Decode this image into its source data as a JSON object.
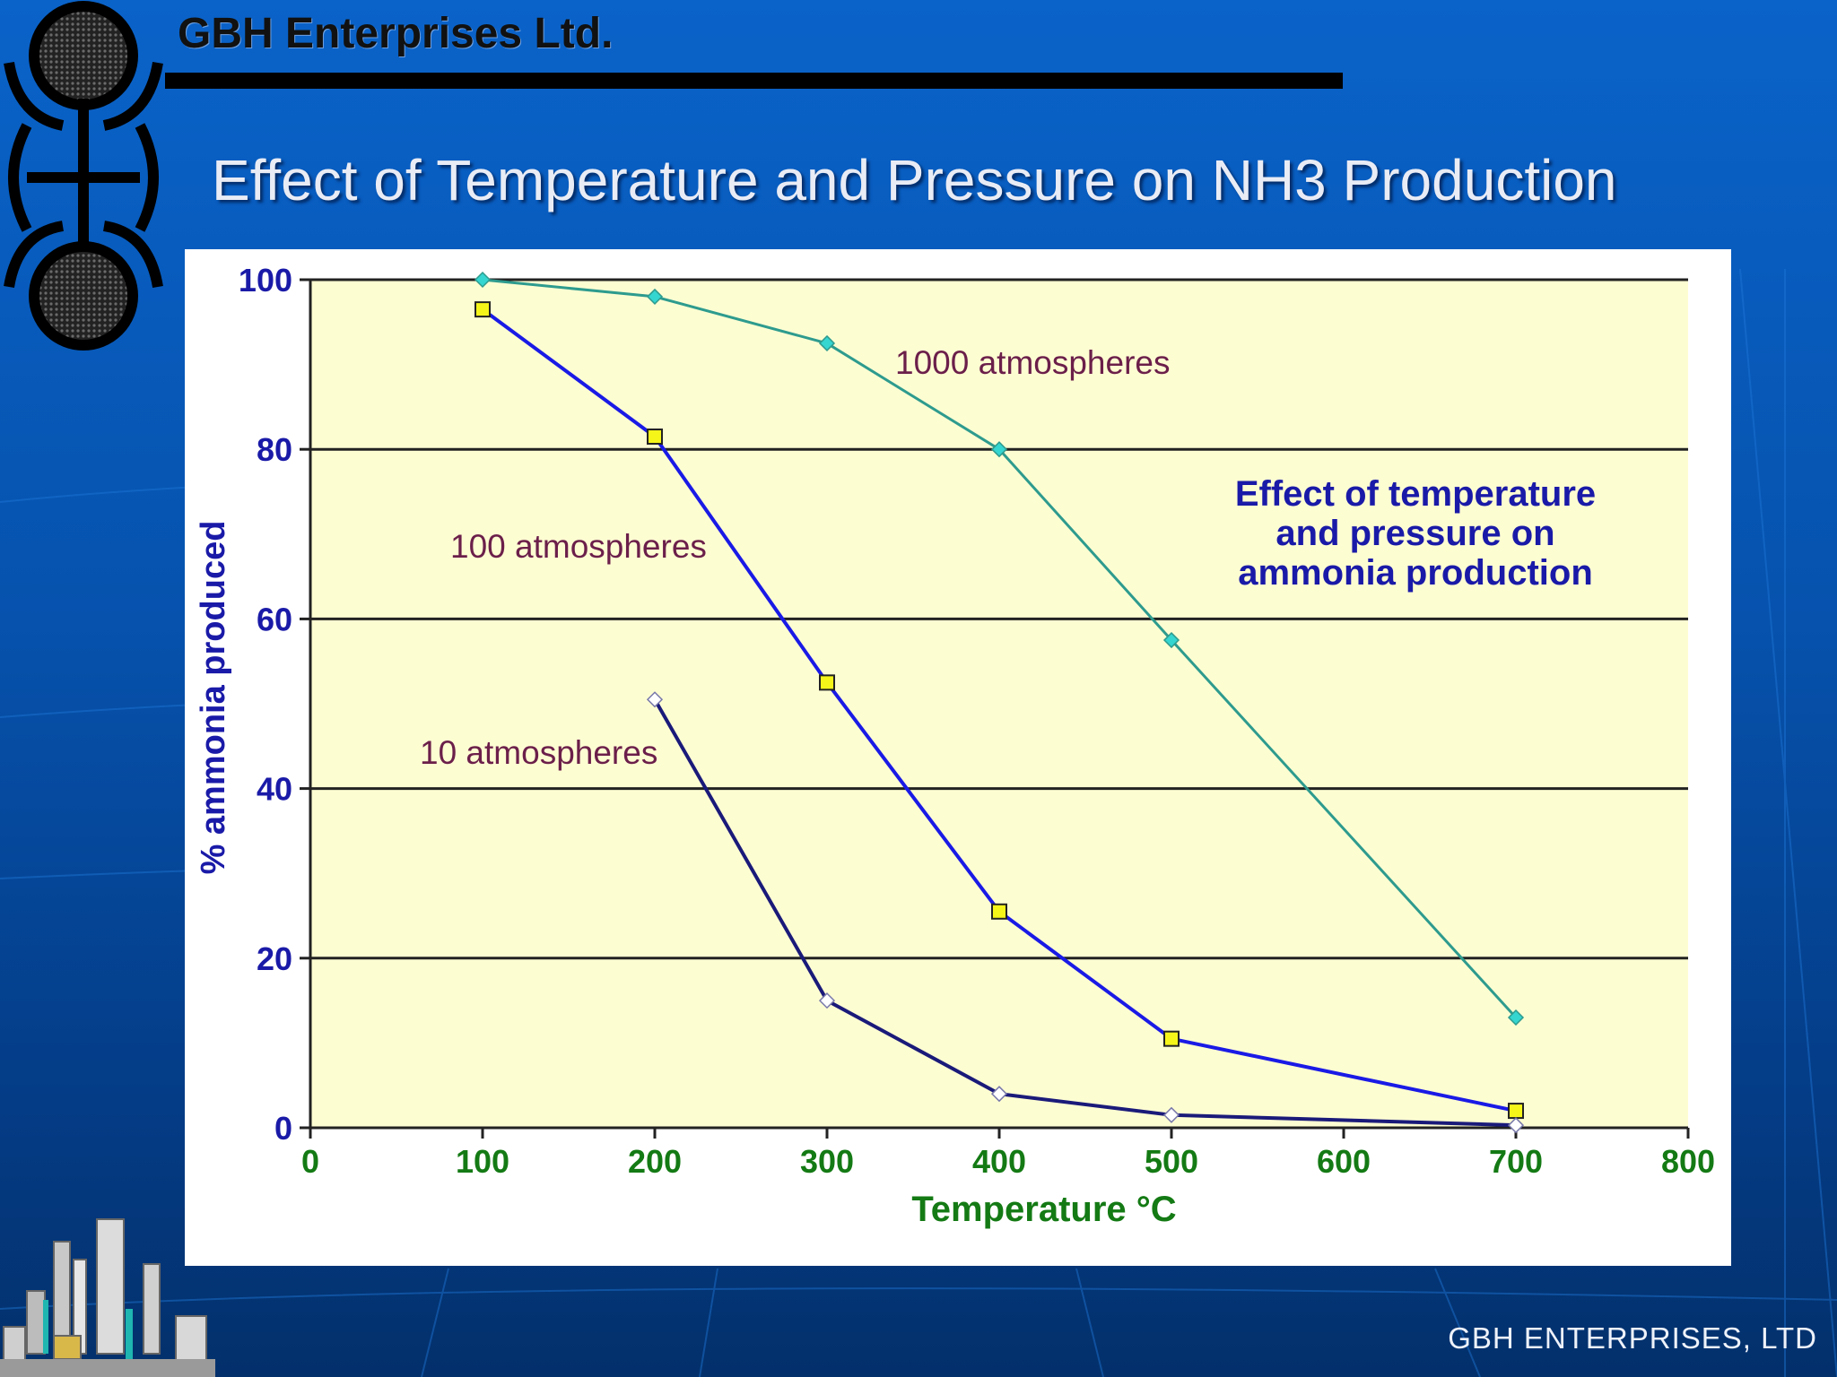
{
  "header": {
    "company": "GBH Enterprises Ltd.",
    "title": "Effect of Temperature and Pressure on NH3 Production"
  },
  "footer": {
    "text": "GBH ENTERPRISES, LTD"
  },
  "colors": {
    "background": "#0652ad",
    "plot_bg": "#fdfdd2",
    "series_1000": "#2e9b8e",
    "series_100": "#1a1ae6",
    "series_10": "#1a1a7a",
    "label_color": "#6b1f4a",
    "y_tick_color": "#1a1aa8",
    "x_tick_color": "#147a14"
  },
  "chart_data": {
    "type": "line",
    "title": "Effect of temperature and pressure on ammonia production",
    "title_lines": [
      "Effect of temperature",
      "and pressure on",
      "ammonia production"
    ],
    "xlabel": "Temperature °C",
    "ylabel": "% ammonia produced",
    "xlim": [
      0,
      800
    ],
    "ylim": [
      0,
      100
    ],
    "xticks": [
      "0",
      "100",
      "200",
      "300",
      "400",
      "500",
      "600",
      "700",
      "800"
    ],
    "yticks": [
      "0",
      "20",
      "40",
      "60",
      "80",
      "100"
    ],
    "grid": "horizontal",
    "series": [
      {
        "name": "1000 atmospheres",
        "marker": "diamond-cyan",
        "x": [
          100,
          200,
          300,
          400,
          500,
          700
        ],
        "values": [
          100,
          98,
          92.5,
          80,
          57.5,
          13
        ]
      },
      {
        "name": "100 atmospheres",
        "marker": "square-yellow",
        "x": [
          100,
          200,
          300,
          400,
          500,
          700
        ],
        "values": [
          96.5,
          81.5,
          52.5,
          25.5,
          10.5,
          2
        ]
      },
      {
        "name": "10 atmospheres",
        "marker": "diamond-white",
        "x": [
          200,
          300,
          400,
          500,
          700
        ],
        "values": [
          50.5,
          15,
          4,
          1.5,
          0.3
        ]
      }
    ]
  }
}
